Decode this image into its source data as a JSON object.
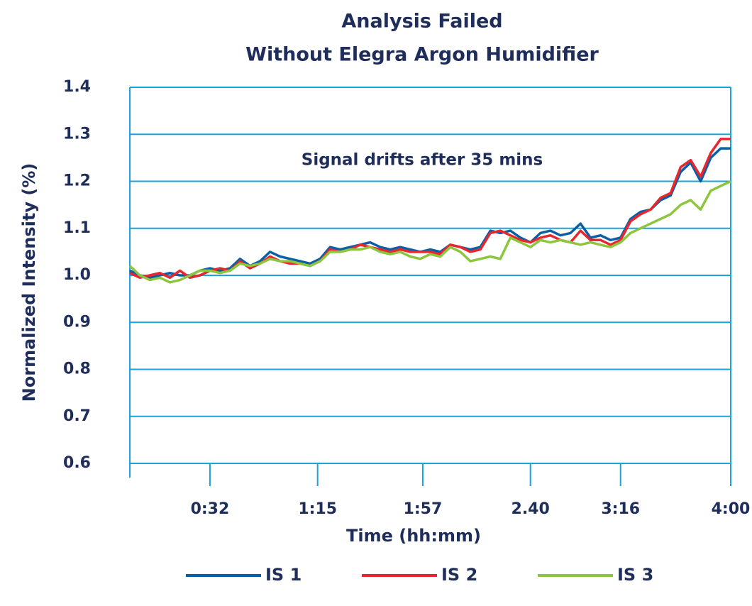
{
  "chart_data": {
    "type": "line",
    "title": "Analysis Failed",
    "subtitle": "Without Elegra Argon Humidifier",
    "xlabel": "Time (hh:mm)",
    "ylabel": "Normalized Intensity (%)",
    "annotation": "Signal drifts after 35 mins",
    "x": [
      0,
      4,
      8,
      12,
      16,
      20,
      24,
      28,
      32,
      36,
      40,
      44,
      48,
      52,
      56,
      60,
      64,
      68,
      72,
      76,
      80,
      84,
      88,
      92,
      96,
      100,
      104,
      108,
      112,
      116,
      120,
      124,
      128,
      132,
      136,
      140,
      144,
      148,
      152,
      156,
      160,
      164,
      168,
      172,
      176,
      180,
      184,
      188,
      192,
      196,
      200,
      204,
      208,
      212,
      216,
      220,
      224,
      228,
      232,
      236,
      240
    ],
    "series": [
      {
        "name": "IS 1",
        "color": "#0b5fa5",
        "values": [
          1.01,
          1.0,
          0.995,
          1.0,
          1.005,
          1.0,
          1.0,
          1.01,
          1.015,
          1.01,
          1.015,
          1.035,
          1.02,
          1.03,
          1.05,
          1.04,
          1.035,
          1.03,
          1.025,
          1.035,
          1.06,
          1.055,
          1.06,
          1.065,
          1.07,
          1.06,
          1.055,
          1.06,
          1.055,
          1.05,
          1.055,
          1.05,
          1.065,
          1.06,
          1.055,
          1.06,
          1.095,
          1.09,
          1.095,
          1.08,
          1.07,
          1.09,
          1.095,
          1.085,
          1.09,
          1.11,
          1.08,
          1.085,
          1.075,
          1.08,
          1.12,
          1.135,
          1.14,
          1.16,
          1.17,
          1.22,
          1.24,
          1.2,
          1.25,
          1.27,
          1.27
        ]
      },
      {
        "name": "IS 2",
        "color": "#e8262d",
        "values": [
          1.005,
          0.995,
          1.0,
          1.005,
          0.995,
          1.01,
          0.995,
          1.0,
          1.01,
          1.015,
          1.01,
          1.03,
          1.015,
          1.025,
          1.04,
          1.03,
          1.025,
          1.025,
          1.02,
          1.03,
          1.055,
          1.05,
          1.055,
          1.065,
          1.06,
          1.055,
          1.05,
          1.055,
          1.05,
          1.05,
          1.05,
          1.045,
          1.065,
          1.06,
          1.05,
          1.055,
          1.09,
          1.095,
          1.085,
          1.075,
          1.07,
          1.08,
          1.085,
          1.075,
          1.07,
          1.095,
          1.075,
          1.075,
          1.065,
          1.075,
          1.115,
          1.13,
          1.14,
          1.165,
          1.175,
          1.23,
          1.245,
          1.21,
          1.26,
          1.29,
          1.29
        ]
      },
      {
        "name": "IS 3",
        "color": "#8cc63f",
        "values": [
          1.02,
          1.0,
          0.99,
          0.995,
          0.985,
          0.99,
          1.0,
          1.01,
          1.01,
          1.005,
          1.01,
          1.025,
          1.02,
          1.025,
          1.035,
          1.03,
          1.03,
          1.025,
          1.02,
          1.03,
          1.05,
          1.05,
          1.055,
          1.055,
          1.06,
          1.05,
          1.045,
          1.05,
          1.04,
          1.035,
          1.045,
          1.04,
          1.06,
          1.05,
          1.03,
          1.035,
          1.04,
          1.035,
          1.08,
          1.07,
          1.06,
          1.075,
          1.07,
          1.075,
          1.07,
          1.065,
          1.07,
          1.065,
          1.06,
          1.07,
          1.09,
          1.1,
          1.11,
          1.12,
          1.13,
          1.15,
          1.16,
          1.14,
          1.18,
          1.19,
          1.2
        ]
      }
    ],
    "xlim": [
      0,
      240
    ],
    "xticks": [
      {
        "value": 32,
        "label": "0:32"
      },
      {
        "value": 75,
        "label": "1:15"
      },
      {
        "value": 117,
        "label": "1:57"
      },
      {
        "value": 160,
        "label": "2.40"
      },
      {
        "value": 196,
        "label": "3:16"
      },
      {
        "value": 240,
        "label": "4:00"
      }
    ],
    "ylim": [
      0.6,
      1.4
    ],
    "yticks": [
      0.6,
      0.7,
      0.8,
      0.9,
      1.0,
      1.1,
      1.2,
      1.3,
      1.4
    ],
    "ytick_labels": [
      "0.6",
      "0.7",
      "0.8",
      "0.9",
      "1.0",
      "1.1",
      "1.2",
      "1.3",
      "1.4"
    ],
    "grid": true,
    "legend": "bottom"
  }
}
